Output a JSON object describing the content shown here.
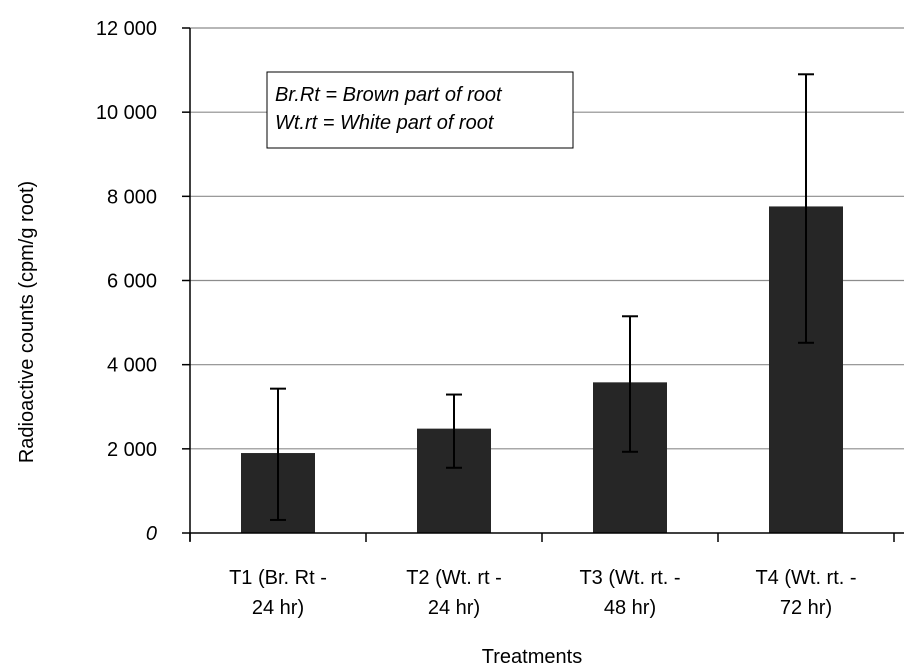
{
  "chart_data": {
    "type": "bar",
    "categories": [
      [
        "T1 (Br. Rt -",
        "24 hr)"
      ],
      [
        "T2 (Wt. rt -",
        "24 hr)"
      ],
      [
        "T3 (Wt. rt. -",
        "48 hr)"
      ],
      [
        "T4 (Wt. rt. -",
        "72 hr)"
      ]
    ],
    "values": [
      1900,
      2480,
      3580,
      7760
    ],
    "error_low": [
      310,
      1550,
      1930,
      4520
    ],
    "error_high": [
      3430,
      3290,
      5150,
      10900
    ],
    "xlabel": "Treatments",
    "ylabel": "Radioactive counts (cpm/g root)",
    "ylim": [
      0,
      12000
    ],
    "yticks": [
      0,
      2000,
      4000,
      6000,
      8000,
      10000,
      12000
    ],
    "ytick_labels": [
      "0",
      "2 000",
      "4 000",
      "6 000",
      "8 000",
      "10 000",
      "12 000"
    ],
    "grid": true,
    "bar_color": "#262626",
    "legend": [
      "Br.Rt = Brown part of root",
      "Wt.rt = White part of root"
    ],
    "legend_position": "top-left"
  }
}
